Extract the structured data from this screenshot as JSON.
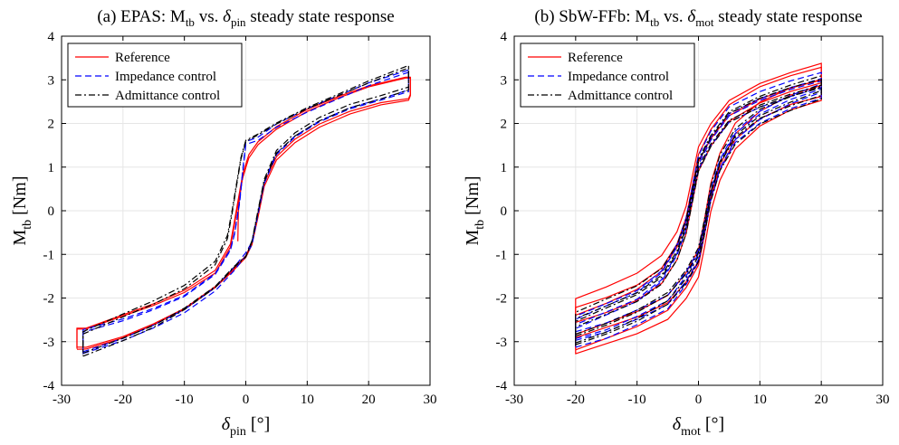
{
  "chart_data": [
    {
      "type": "line",
      "title": "(a) EPAS: M_tb vs. δ_pin steady state response",
      "title_parts": {
        "prefix": "(a) EPAS: M",
        "sub1": "tb",
        "mid": " vs. ",
        "greek": "δ",
        "sub2": "pin",
        "suffix": " steady state response"
      },
      "xlabel": "δ_pin [°]",
      "xlabel_parts": {
        "greek": "δ",
        "sub": "pin",
        "unit": " [°]"
      },
      "ylabel": "M_tb [Nm]",
      "ylabel_parts": {
        "main": "M",
        "sub": "tb",
        "unit": " [Nm]"
      },
      "xlim": [
        -30,
        30
      ],
      "ylim": [
        -4,
        4
      ],
      "xticks": [
        "-30",
        "-20",
        "-10",
        "0",
        "10",
        "20",
        "30"
      ],
      "yticks": [
        "-4",
        "-3",
        "-2",
        "-1",
        "0",
        "1",
        "2",
        "3",
        "4"
      ],
      "grid": true,
      "legend_position": "top-left",
      "legend": [
        "Reference",
        "Impedance control",
        "Admittance control"
      ],
      "series": [
        {
          "name": "Reference",
          "color": "#ff0000",
          "style": "solid",
          "upper": [
            [
              -27.5,
              -3.15
            ],
            [
              -26,
              -3.15
            ],
            [
              -20,
              -2.9
            ],
            [
              -15,
              -2.6
            ],
            [
              -10,
              -2.25
            ],
            [
              -5,
              -1.75
            ],
            [
              -2,
              -1.35
            ],
            [
              0,
              -1.05
            ],
            [
              1,
              -0.75
            ],
            [
              2,
              -0.1
            ],
            [
              3,
              0.6
            ],
            [
              5,
              1.2
            ],
            [
              8,
              1.6
            ],
            [
              12,
              1.95
            ],
            [
              17,
              2.25
            ],
            [
              22,
              2.45
            ],
            [
              26.5,
              2.55
            ],
            [
              26.8,
              2.65
            ]
          ],
          "lower": [
            [
              26.8,
              3.05
            ],
            [
              26,
              3.05
            ],
            [
              20,
              2.85
            ],
            [
              15,
              2.6
            ],
            [
              10,
              2.3
            ],
            [
              5,
              1.9
            ],
            [
              2,
              1.55
            ],
            [
              0.5,
              1.25
            ],
            [
              -0.5,
              0.8
            ],
            [
              -1.5,
              0.0
            ],
            [
              -2.5,
              -0.8
            ],
            [
              -5,
              -1.4
            ],
            [
              -10,
              -1.85
            ],
            [
              -15,
              -2.15
            ],
            [
              -20,
              -2.4
            ],
            [
              -26,
              -2.7
            ],
            [
              -27.5,
              -2.7
            ],
            [
              -27.5,
              -3.15
            ]
          ],
          "extra": [
            [
              -1.3,
              -0.7
            ],
            [
              -1.2,
              0.1
            ],
            [
              -0.6,
              0.7
            ],
            [
              0,
              1.0
            ]
          ]
        },
        {
          "name": "Impedance control",
          "color": "#0000ff",
          "style": "dashed",
          "upper": [
            [
              -26.5,
              -3.25
            ],
            [
              -20,
              -2.95
            ],
            [
              -15,
              -2.65
            ],
            [
              -10,
              -2.3
            ],
            [
              -5,
              -1.8
            ],
            [
              -2,
              -1.35
            ],
            [
              0,
              -1.0
            ],
            [
              1,
              -0.75
            ],
            [
              2,
              -0.05
            ],
            [
              3,
              0.65
            ],
            [
              5,
              1.3
            ],
            [
              8,
              1.7
            ],
            [
              12,
              2.05
            ],
            [
              17,
              2.35
            ],
            [
              22,
              2.55
            ],
            [
              26.5,
              2.75
            ]
          ],
          "lower": [
            [
              26.5,
              3.2
            ],
            [
              20,
              2.9
            ],
            [
              15,
              2.6
            ],
            [
              10,
              2.3
            ],
            [
              5,
              1.95
            ],
            [
              2,
              1.65
            ],
            [
              0,
              1.55
            ],
            [
              -0.5,
              0.9
            ],
            [
              -1,
              0.2
            ],
            [
              -1.8,
              -0.5
            ],
            [
              -2.5,
              -0.9
            ],
            [
              -5,
              -1.45
            ],
            [
              -10,
              -1.95
            ],
            [
              -15,
              -2.25
            ],
            [
              -20,
              -2.5
            ],
            [
              -26.5,
              -2.75
            ],
            [
              -26.5,
              -3.25
            ]
          ]
        },
        {
          "name": "Admittance control",
          "color": "#000000",
          "style": "dashdot",
          "upper": [
            [
              -26.5,
              -3.3
            ],
            [
              -20,
              -2.95
            ],
            [
              -15,
              -2.65
            ],
            [
              -10,
              -2.25
            ],
            [
              -5,
              -1.75
            ],
            [
              -2,
              -1.3
            ],
            [
              0,
              -1.05
            ],
            [
              1,
              -0.7
            ],
            [
              2,
              0.0
            ],
            [
              3,
              0.7
            ],
            [
              5,
              1.35
            ],
            [
              8,
              1.75
            ],
            [
              12,
              2.1
            ],
            [
              17,
              2.4
            ],
            [
              22,
              2.6
            ],
            [
              26.5,
              2.8
            ]
          ],
          "lower": [
            [
              26.5,
              3.3
            ],
            [
              20,
              2.95
            ],
            [
              15,
              2.65
            ],
            [
              10,
              2.35
            ],
            [
              5,
              2.0
            ],
            [
              2,
              1.75
            ],
            [
              0,
              1.6
            ],
            [
              -0.8,
              1.2
            ],
            [
              -1.5,
              0.6
            ],
            [
              -2.2,
              0.0
            ],
            [
              -3,
              -0.6
            ],
            [
              -5,
              -1.2
            ],
            [
              -10,
              -1.75
            ],
            [
              -15,
              -2.1
            ],
            [
              -20,
              -2.4
            ],
            [
              -26.5,
              -2.8
            ],
            [
              -26.5,
              -3.3
            ]
          ]
        }
      ]
    },
    {
      "type": "line",
      "title": "(b) SbW-FFb: M_tb vs. δ_mot steady state response",
      "title_parts": {
        "prefix": "(b) SbW-FFb: M",
        "sub1": "tb",
        "mid": " vs. ",
        "greek": "δ",
        "sub2": "mot",
        "suffix": " steady state response"
      },
      "xlabel": "δ_mot [°]",
      "xlabel_parts": {
        "greek": "δ",
        "sub": "mot",
        "unit": " [°]"
      },
      "ylabel": "M_tb [Nm]",
      "ylabel_parts": {
        "main": "M",
        "sub": "tb",
        "unit": " [Nm]"
      },
      "xlim": [
        -30,
        30
      ],
      "ylim": [
        -4,
        4
      ],
      "xticks": [
        "-30",
        "-20",
        "-10",
        "0",
        "10",
        "20",
        "30"
      ],
      "yticks": [
        "-4",
        "-3",
        "-2",
        "-1",
        "0",
        "1",
        "2",
        "3",
        "4"
      ],
      "grid": true,
      "legend_position": "top-left",
      "legend": [
        "Reference",
        "Impedance control",
        "Admittance control"
      ],
      "series": [
        {
          "name": "Reference",
          "color": "#ff0000",
          "style": "solid",
          "upper": [
            [
              -20,
              -3.05
            ],
            [
              -15,
              -2.8
            ],
            [
              -10,
              -2.55
            ],
            [
              -5,
              -2.2
            ],
            [
              -2,
              -1.7
            ],
            [
              0,
              -1.2
            ],
            [
              1,
              -0.5
            ],
            [
              2,
              0.3
            ],
            [
              3.5,
              1.0
            ],
            [
              6,
              1.7
            ],
            [
              10,
              2.2
            ],
            [
              15,
              2.55
            ],
            [
              20,
              2.75
            ]
          ],
          "lower": [
            [
              20,
              3.15
            ],
            [
              15,
              2.95
            ],
            [
              10,
              2.7
            ],
            [
              5,
              2.3
            ],
            [
              2,
              1.75
            ],
            [
              0,
              1.2
            ],
            [
              -1,
              0.5
            ],
            [
              -2,
              -0.2
            ],
            [
              -3.5,
              -0.8
            ],
            [
              -6,
              -1.35
            ],
            [
              -10,
              -1.75
            ],
            [
              -15,
              -2.05
            ],
            [
              -20,
              -2.3
            ],
            [
              -20,
              -3.05
            ]
          ],
          "spread": 0.18
        },
        {
          "name": "Impedance control",
          "color": "#0000ff",
          "style": "dashed",
          "upper": [
            [
              -20,
              -2.95
            ],
            [
              -15,
              -2.75
            ],
            [
              -10,
              -2.45
            ],
            [
              -5,
              -2.1
            ],
            [
              -2,
              -1.55
            ],
            [
              0,
              -1.05
            ],
            [
              1,
              -0.4
            ],
            [
              2,
              0.35
            ],
            [
              3.5,
              1.05
            ],
            [
              6,
              1.7
            ],
            [
              10,
              2.15
            ],
            [
              15,
              2.5
            ],
            [
              20,
              2.75
            ]
          ],
          "lower": [
            [
              20,
              3.0
            ],
            [
              15,
              2.8
            ],
            [
              10,
              2.55
            ],
            [
              5,
              2.2
            ],
            [
              2,
              1.65
            ],
            [
              0,
              1.1
            ],
            [
              -1,
              0.4
            ],
            [
              -2,
              -0.3
            ],
            [
              -3.5,
              -0.9
            ],
            [
              -6,
              -1.5
            ],
            [
              -10,
              -1.95
            ],
            [
              -15,
              -2.25
            ],
            [
              -20,
              -2.55
            ],
            [
              -20,
              -2.95
            ]
          ],
          "spread": 0.1
        },
        {
          "name": "Admittance control",
          "color": "#000000",
          "style": "dashdot",
          "upper": [
            [
              -20,
              -2.95
            ],
            [
              -15,
              -2.7
            ],
            [
              -10,
              -2.4
            ],
            [
              -5,
              -2.0
            ],
            [
              -2,
              -1.5
            ],
            [
              0,
              -1.0
            ],
            [
              1,
              -0.35
            ],
            [
              2,
              0.4
            ],
            [
              3.5,
              1.1
            ],
            [
              6,
              1.7
            ],
            [
              10,
              2.15
            ],
            [
              15,
              2.45
            ],
            [
              20,
              2.7
            ]
          ],
          "lower": [
            [
              20,
              2.95
            ],
            [
              15,
              2.75
            ],
            [
              10,
              2.5
            ],
            [
              5,
              2.15
            ],
            [
              2,
              1.6
            ],
            [
              0,
              1.05
            ],
            [
              -1,
              0.35
            ],
            [
              -2,
              -0.35
            ],
            [
              -3.5,
              -0.95
            ],
            [
              -6,
              -1.5
            ],
            [
              -10,
              -1.9
            ],
            [
              -15,
              -2.2
            ],
            [
              -20,
              -2.5
            ],
            [
              -20,
              -2.95
            ]
          ],
          "spread": 0.1
        }
      ]
    }
  ]
}
